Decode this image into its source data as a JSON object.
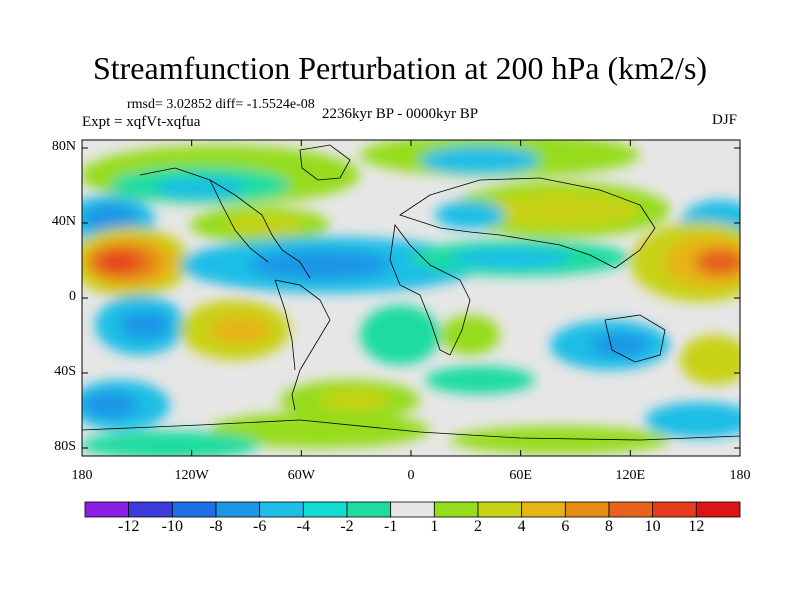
{
  "title": "Streamfunction Perturbation at 200 hPa (km2/s)",
  "stats": "rmsd= 3.02852 diff= -1.5524e-08",
  "experiment": "Expt = xqfVt-xqfua",
  "period": "2236kyr BP - 0000kyr BP",
  "season": "DJF",
  "axes": {
    "lat_ticks": [
      "80N",
      "40N",
      "0",
      "40S",
      "80S"
    ],
    "lon_ticks": [
      "180",
      "120W",
      "60W",
      "0",
      "60E",
      "120E",
      "180"
    ]
  },
  "colorbar": {
    "labels": [
      "-12",
      "-10",
      "-8",
      "-6",
      "-4",
      "-2",
      "-1",
      "1",
      "2",
      "4",
      "6",
      "8",
      "10",
      "12"
    ],
    "colors": [
      "#8c1ee6",
      "#3c3cdc",
      "#1e6ee6",
      "#1e96e6",
      "#1ebee6",
      "#14dcd2",
      "#1edca0",
      "#e6e6e6",
      "#96dc1e",
      "#c8d214",
      "#e6b414",
      "#e68c14",
      "#e6641e",
      "#e63c1e",
      "#dc1414"
    ]
  }
}
